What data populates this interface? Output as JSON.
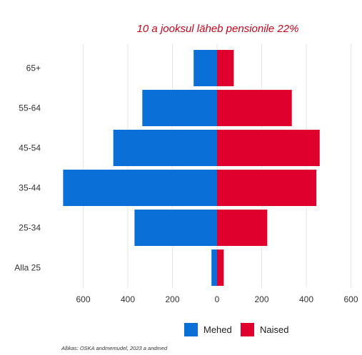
{
  "chart_data": {
    "type": "bar",
    "orientation": "horizontal",
    "layout": "population-pyramid",
    "annotation": "10 a jooksul läheb pensionile 22%",
    "categories": [
      "Alla 25",
      "25-34",
      "35-44",
      "45-54",
      "55-64",
      "65+"
    ],
    "series": [
      {
        "name": "Mehed",
        "color": "#0a6fd6",
        "values": [
          25,
          370,
          690,
          465,
          335,
          105
        ]
      },
      {
        "name": "Naised",
        "color": "#e0002e",
        "values": [
          30,
          225,
          445,
          460,
          335,
          75
        ]
      }
    ],
    "xlim": [
      -700,
      600
    ],
    "xticks": [
      -600,
      -400,
      -200,
      0,
      200,
      400,
      600
    ],
    "xtick_labels": [
      "600",
      "400",
      "200",
      "0",
      "200",
      "400",
      "600"
    ],
    "grid": true,
    "legend_position": "bottom",
    "annotation_color": "#d0021b"
  },
  "source_note": "Allikas: OSKA andmemudel, 2023 a andmed"
}
